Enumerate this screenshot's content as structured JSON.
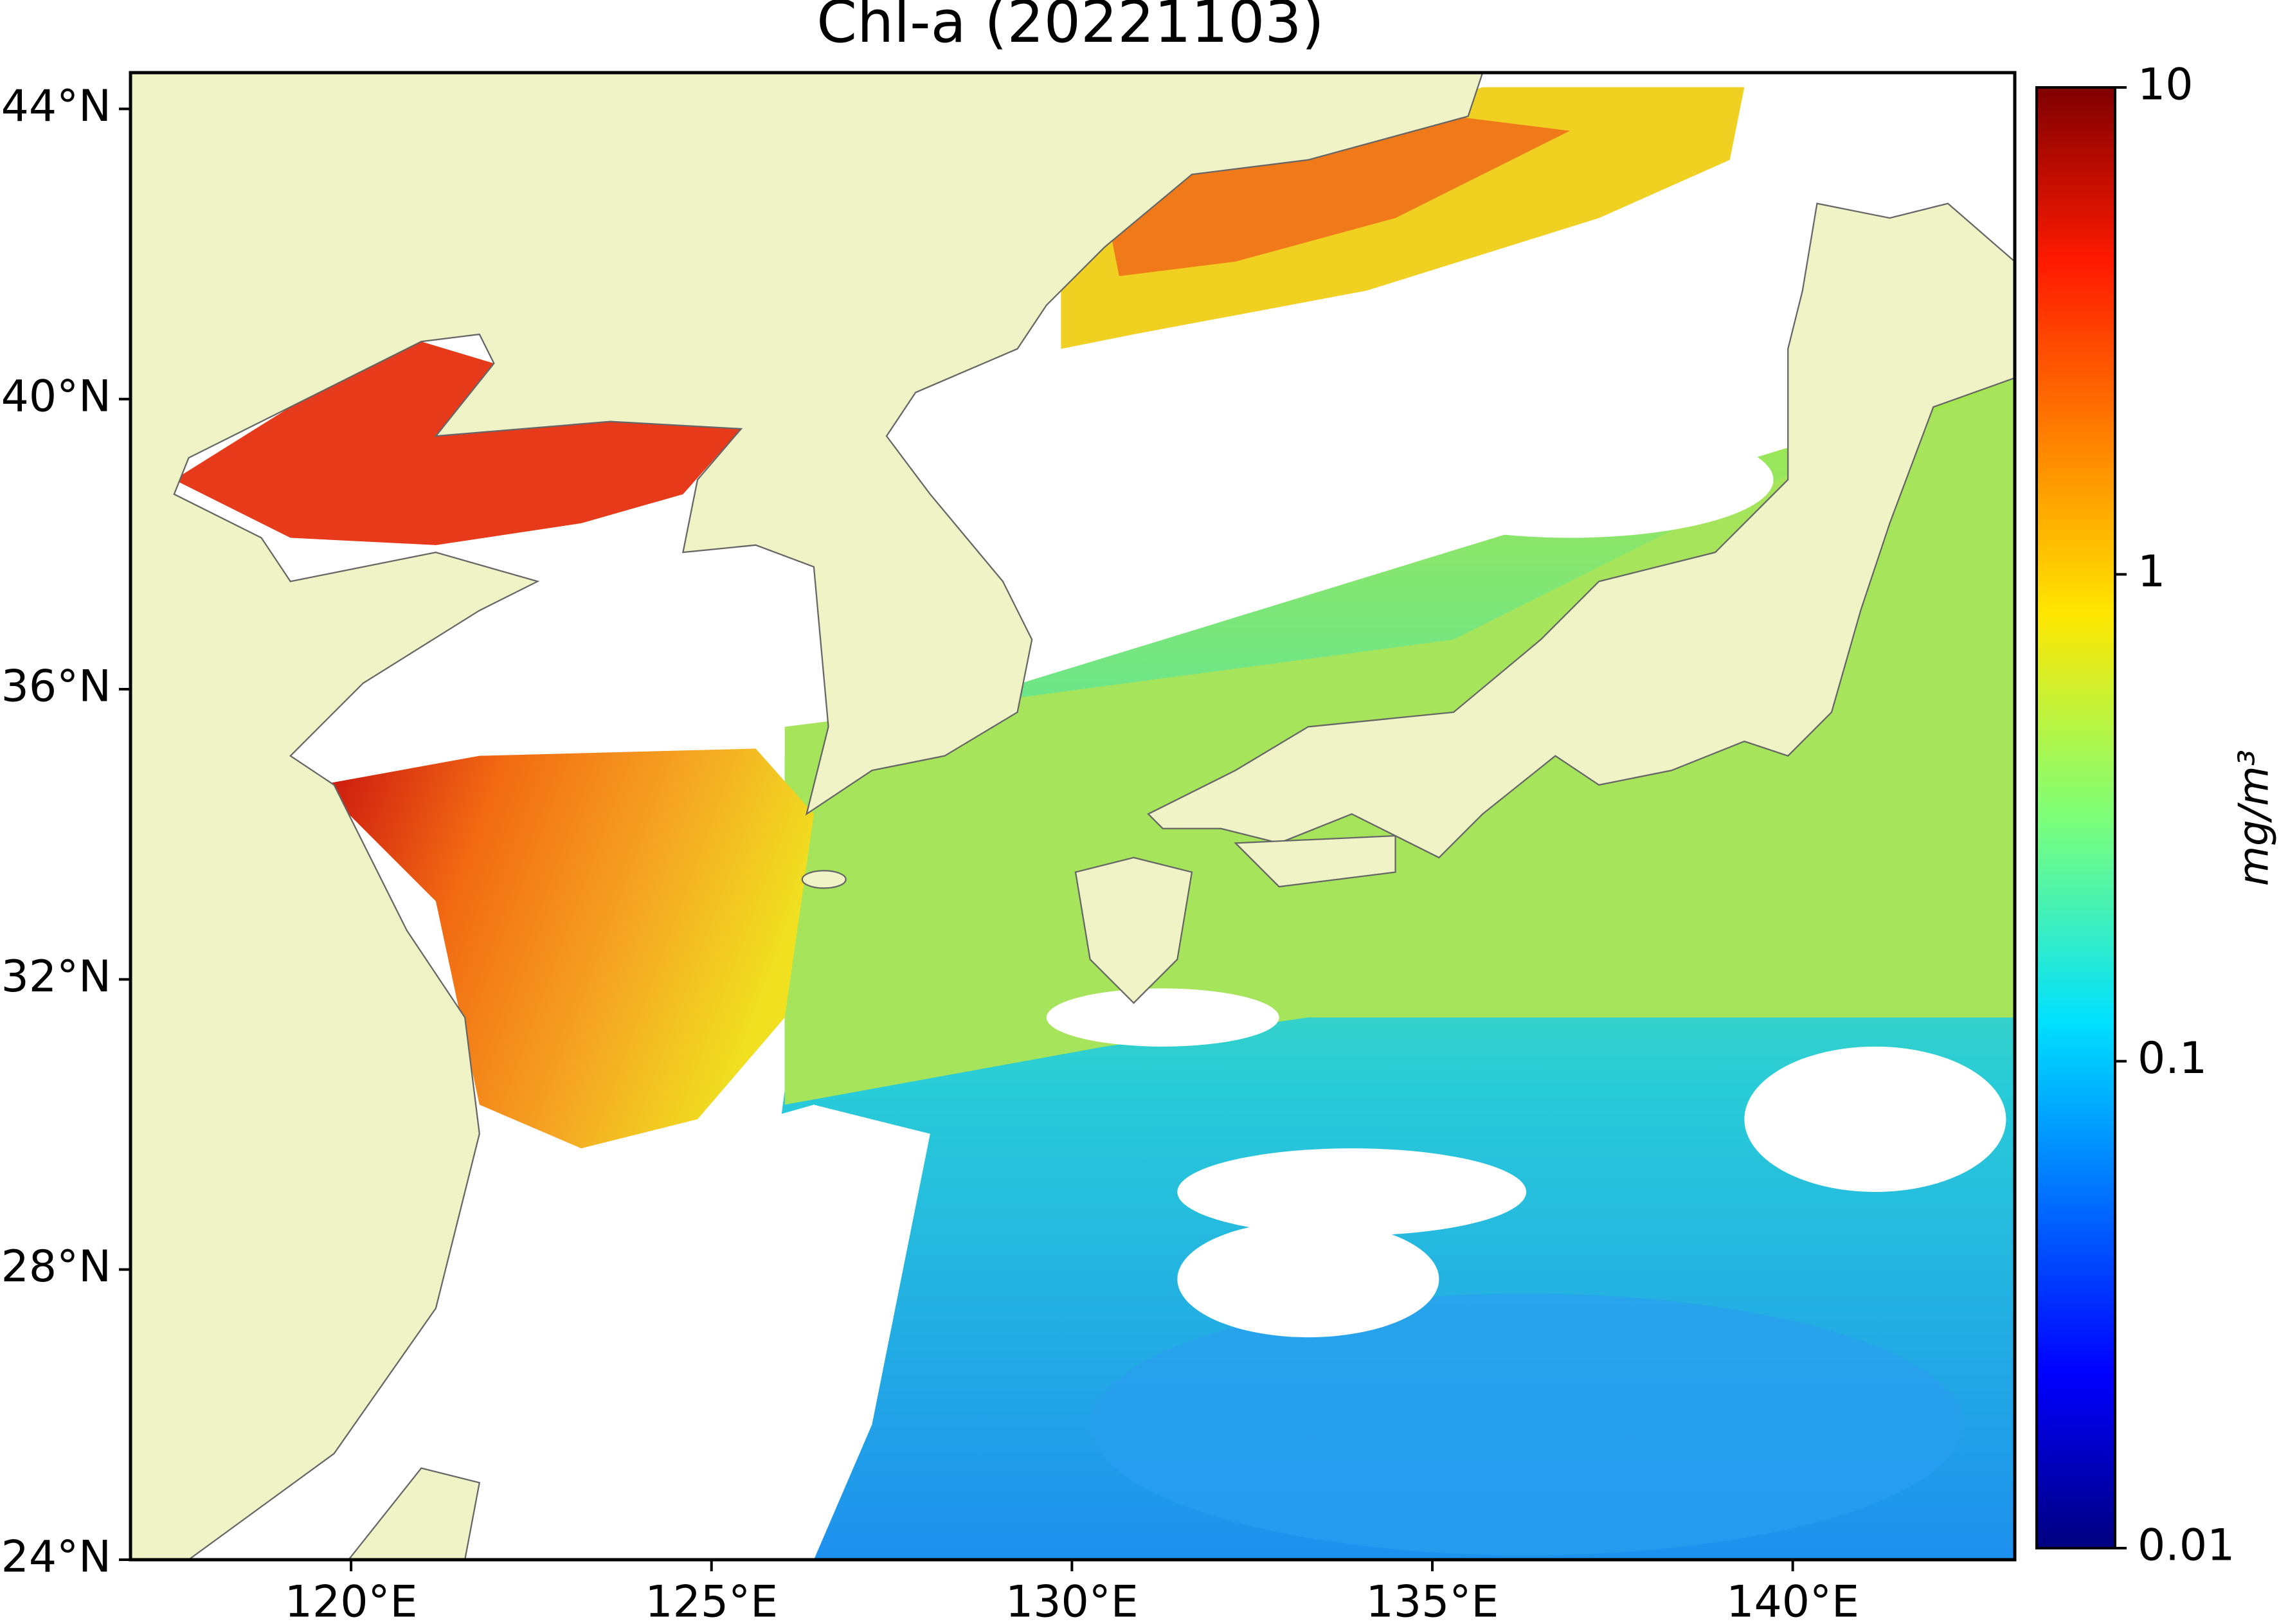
{
  "chart_data": {
    "type": "map",
    "title": "Chl-a (20221103)",
    "xlim": [
      116.94,
      143.08
    ],
    "ylim": [
      24,
      44.5
    ],
    "xticks": [
      {
        "value": 120,
        "label": "120°E"
      },
      {
        "value": 125,
        "label": "125°E"
      },
      {
        "value": 130,
        "label": "130°E"
      },
      {
        "value": 135,
        "label": "135°E"
      },
      {
        "value": 140,
        "label": "140°E"
      }
    ],
    "yticks": [
      {
        "value": 24,
        "label": "24°N"
      },
      {
        "value": 28,
        "label": "28°N"
      },
      {
        "value": 32,
        "label": "32°N"
      },
      {
        "value": 36,
        "label": "36°N"
      },
      {
        "value": 40,
        "label": "40°N"
      },
      {
        "value": 44,
        "label": "44°N"
      }
    ],
    "colorbar": {
      "label": "mg/m³",
      "log_scale": true,
      "lim": [
        0.01,
        10
      ],
      "ticks": [
        0.01,
        0.1,
        1,
        10
      ],
      "colormap": "jet"
    }
  }
}
